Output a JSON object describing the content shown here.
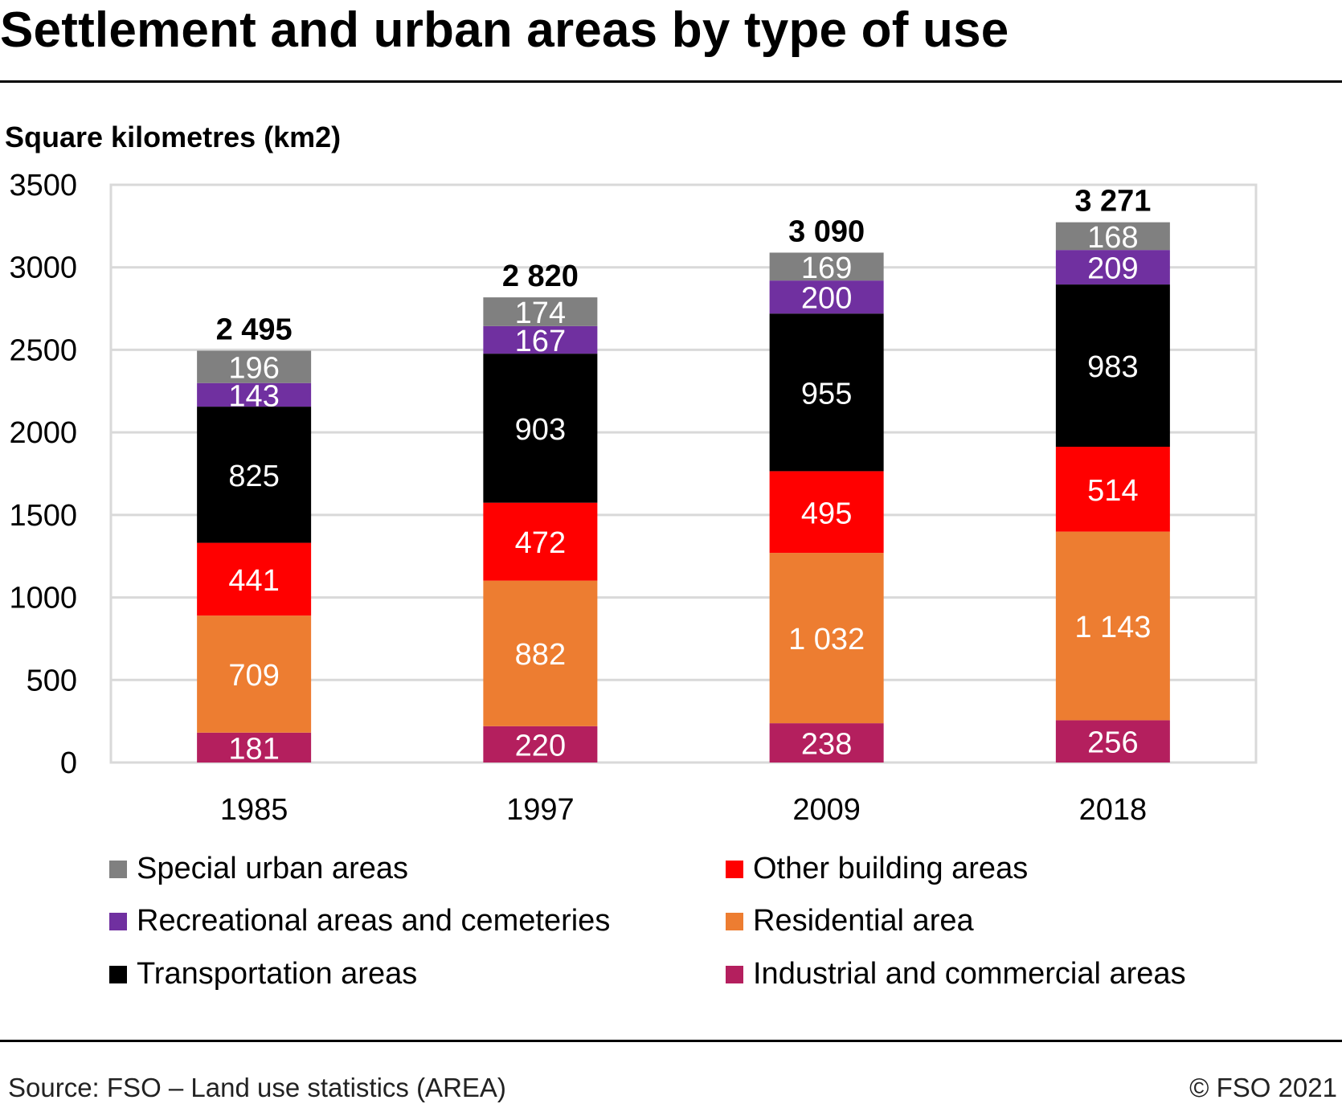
{
  "title": "Settlement and urban areas by type of use",
  "subtitle": "Square kilometres (km2)",
  "source": "Source: FSO – Land use statistics (AREA)",
  "copyright": "© FSO 2021",
  "chart_data": {
    "type": "bar",
    "stacked": true,
    "categories": [
      "1985",
      "1997",
      "2009",
      "2018"
    ],
    "totals": [
      2495,
      2820,
      3090,
      3271
    ],
    "total_labels": [
      "2 495",
      "2 820",
      "3 090",
      "3 271"
    ],
    "ylim": [
      0,
      3500
    ],
    "yticks": [
      0,
      500,
      1000,
      1500,
      2000,
      2500,
      3000,
      3500
    ],
    "ylabel": "Square kilometres (km2)",
    "grid": true,
    "series": [
      {
        "name": "Industrial and commercial areas",
        "color": "#b41f5e",
        "values": [
          181,
          220,
          238,
          256
        ],
        "labels": [
          "181",
          "220",
          "238",
          "256"
        ],
        "label_color": "#ffffff"
      },
      {
        "name": "Residential area",
        "color": "#ed7d31",
        "values": [
          709,
          882,
          1032,
          1143
        ],
        "labels": [
          "709",
          "882",
          "1 032",
          "1 143"
        ],
        "label_color": "#ffffff"
      },
      {
        "name": "Other building areas",
        "color": "#ff0000",
        "values": [
          441,
          472,
          495,
          514
        ],
        "labels": [
          "441",
          "472",
          "495",
          "514"
        ],
        "label_color": "#ffffff"
      },
      {
        "name": "Transportation areas",
        "color": "#000000",
        "values": [
          825,
          903,
          955,
          983
        ],
        "labels": [
          "825",
          "903",
          "955",
          "983"
        ],
        "label_color": "#ffffff"
      },
      {
        "name": "Recreational areas and cemeteries",
        "color": "#7030a0",
        "values": [
          143,
          167,
          200,
          209
        ],
        "labels": [
          "143",
          "167",
          "200",
          "209"
        ],
        "label_color": "#ffffff"
      },
      {
        "name": "Special urban areas",
        "color": "#808080",
        "values": [
          196,
          174,
          169,
          168
        ],
        "labels": [
          "196",
          "174",
          "169",
          "168"
        ],
        "label_color": "#ffffff"
      }
    ],
    "legend": [
      {
        "name": "Special urban areas",
        "color": "#808080"
      },
      {
        "name": "Recreational areas and cemeteries",
        "color": "#7030a0"
      },
      {
        "name": "Transportation areas",
        "color": "#000000"
      },
      {
        "name": "Other building areas",
        "color": "#ff0000"
      },
      {
        "name": "Residential area",
        "color": "#ed7d31"
      },
      {
        "name": "Industrial and commercial areas",
        "color": "#b41f5e"
      }
    ],
    "legend_position": "bottom"
  }
}
